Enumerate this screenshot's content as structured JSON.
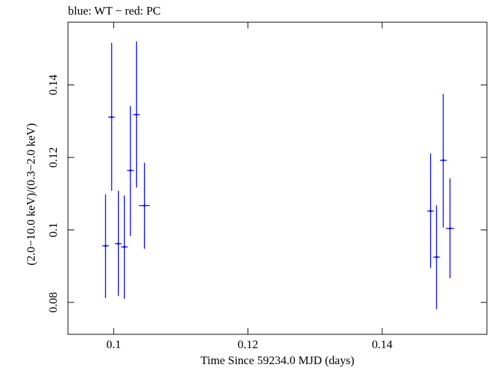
{
  "chart_data": {
    "type": "scatter",
    "title": "blue: WT − red: PC",
    "xlabel": "Time Since 59234.0 MJD (days)",
    "ylabel": "(2.0−10.0 keV)/(0.3−2.0 keV)",
    "xlim": [
      0.0932,
      0.1556
    ],
    "ylim": [
      0.0712,
      0.1573
    ],
    "x_ticks": [
      0.1,
      0.12,
      0.14
    ],
    "x_tick_labels": [
      "0.1",
      "0.12",
      "0.14"
    ],
    "y_ticks": [
      0.08,
      0.1,
      0.12,
      0.14
    ],
    "y_tick_labels": [
      "0.08",
      "0.1",
      "0.12",
      "0.14"
    ],
    "grid": false,
    "colors": {
      "WT": "#0000ff",
      "PC": "#ff0000"
    },
    "series": [
      {
        "name": "WT",
        "points": [
          {
            "x": 0.0988,
            "y": 0.0956,
            "xerr": 0.0005,
            "yerr_low": 0.0144,
            "yerr_high": 0.0142
          },
          {
            "x": 0.0997,
            "y": 0.1311,
            "xerr": 0.0005,
            "yerr_low": 0.0203,
            "yerr_high": 0.0205
          },
          {
            "x": 0.1007,
            "y": 0.0962,
            "xerr": 0.0005,
            "yerr_low": 0.0144,
            "yerr_high": 0.0146
          },
          {
            "x": 0.1016,
            "y": 0.0953,
            "xerr": 0.0005,
            "yerr_low": 0.0143,
            "yerr_high": 0.0142
          },
          {
            "x": 0.1025,
            "y": 0.1164,
            "xerr": 0.0005,
            "yerr_low": 0.0181,
            "yerr_high": 0.0178
          },
          {
            "x": 0.1034,
            "y": 0.1318,
            "xerr": 0.0005,
            "yerr_low": 0.0201,
            "yerr_high": 0.0202
          },
          {
            "x": 0.1046,
            "y": 0.1067,
            "xerr": 0.0008,
            "yerr_low": 0.0119,
            "yerr_high": 0.0118
          },
          {
            "x": 0.1472,
            "y": 0.1052,
            "xerr": 0.0005,
            "yerr_low": 0.0157,
            "yerr_high": 0.0159
          },
          {
            "x": 0.1481,
            "y": 0.0925,
            "xerr": 0.0005,
            "yerr_low": 0.0144,
            "yerr_high": 0.0143
          },
          {
            "x": 0.1491,
            "y": 0.1192,
            "xerr": 0.0005,
            "yerr_low": 0.0185,
            "yerr_high": 0.0183
          },
          {
            "x": 0.1501,
            "y": 0.1004,
            "xerr": 0.0006,
            "yerr_low": 0.0137,
            "yerr_high": 0.0138
          }
        ]
      }
    ]
  }
}
